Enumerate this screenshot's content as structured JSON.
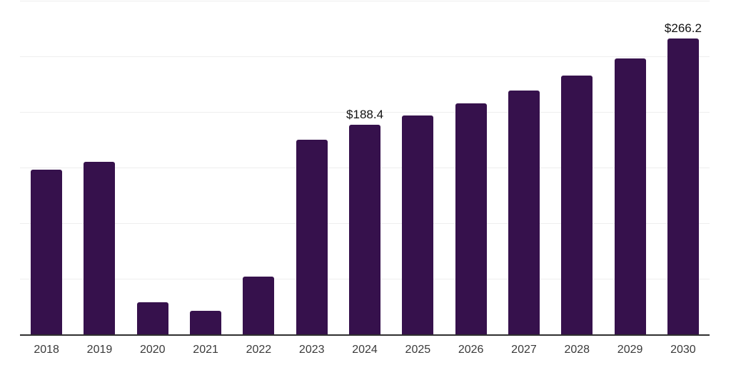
{
  "chart_data": {
    "type": "bar",
    "categories": [
      "2018",
      "2019",
      "2020",
      "2021",
      "2022",
      "2023",
      "2024",
      "2025",
      "2026",
      "2027",
      "2028",
      "2029",
      "2030"
    ],
    "values": [
      148,
      155,
      29,
      21,
      52,
      175,
      188.4,
      197,
      208,
      219,
      233,
      248,
      266.2
    ],
    "data_labels": [
      "",
      "",
      "",
      "",
      "",
      "",
      "$188.4",
      "",
      "",
      "",
      "",
      "",
      "$266.2"
    ],
    "title": "",
    "xlabel": "",
    "ylabel": "",
    "ylim": [
      0,
      300
    ],
    "grid_step": 50,
    "grid_on": true,
    "legend": "none",
    "colors": {
      "bar": "#36114C",
      "axis_line": "#2F2F2F",
      "gridline": "#EEEEEE",
      "tick_label": "#3A3A3A",
      "value_label": "#111111",
      "background": "#FFFFFF"
    }
  }
}
